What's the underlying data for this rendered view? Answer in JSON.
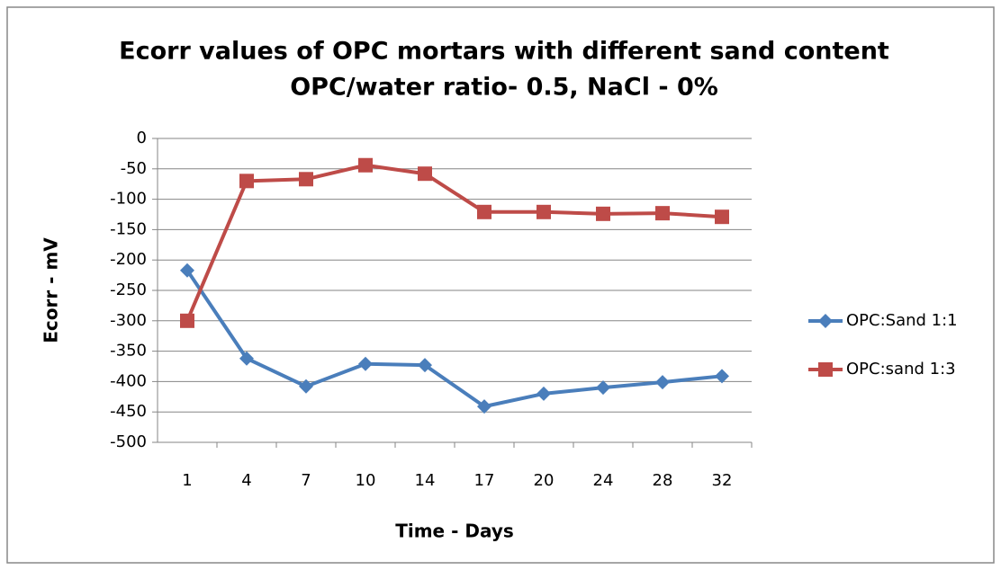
{
  "chart_data": {
    "type": "line",
    "title": [
      "Ecorr values of OPC mortars with  different sand content",
      "OPC/water ratio-  0.5, NaCl - 0%"
    ],
    "x_label": "Time - Days",
    "y_label": "Ecorr - mV",
    "categories": [
      "1",
      "4",
      "7",
      "10",
      "14",
      "17",
      "20",
      "24",
      "28",
      "32"
    ],
    "series": [
      {
        "name": "OPC:Sand 1:1",
        "color": "#4a7ebb",
        "marker": "diamond",
        "values": [
          -217,
          -362,
          -408,
          -371,
          -373,
          -441,
          -420,
          -410,
          -401,
          -391
        ]
      },
      {
        "name": "OPC:sand 1:3",
        "color": "#be4b48",
        "marker": "square",
        "values": [
          -300,
          -70,
          -67,
          -44,
          -58,
          -121,
          -121,
          -124,
          -123,
          -129
        ]
      }
    ],
    "ylim": [
      -500,
      0
    ],
    "yticks": [
      0,
      -50,
      -100,
      -150,
      -200,
      -250,
      -300,
      -350,
      -400,
      -450,
      -500
    ],
    "grid": true,
    "legend": "right"
  }
}
